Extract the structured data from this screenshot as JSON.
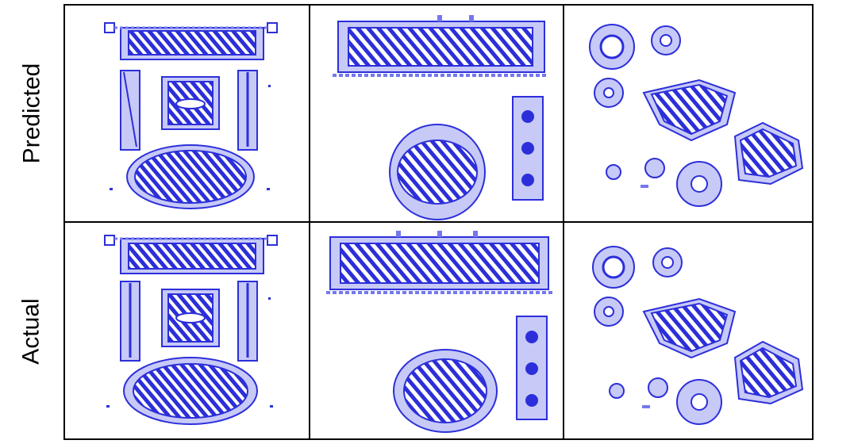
{
  "rows": [
    {
      "label": "Predicted"
    },
    {
      "label": "Actual"
    }
  ],
  "colors": {
    "fill": "#7478ee",
    "stroke": "#2c2fd9",
    "light": "#c7c9f7",
    "hatch": "#ffffff",
    "border": "#000000"
  }
}
